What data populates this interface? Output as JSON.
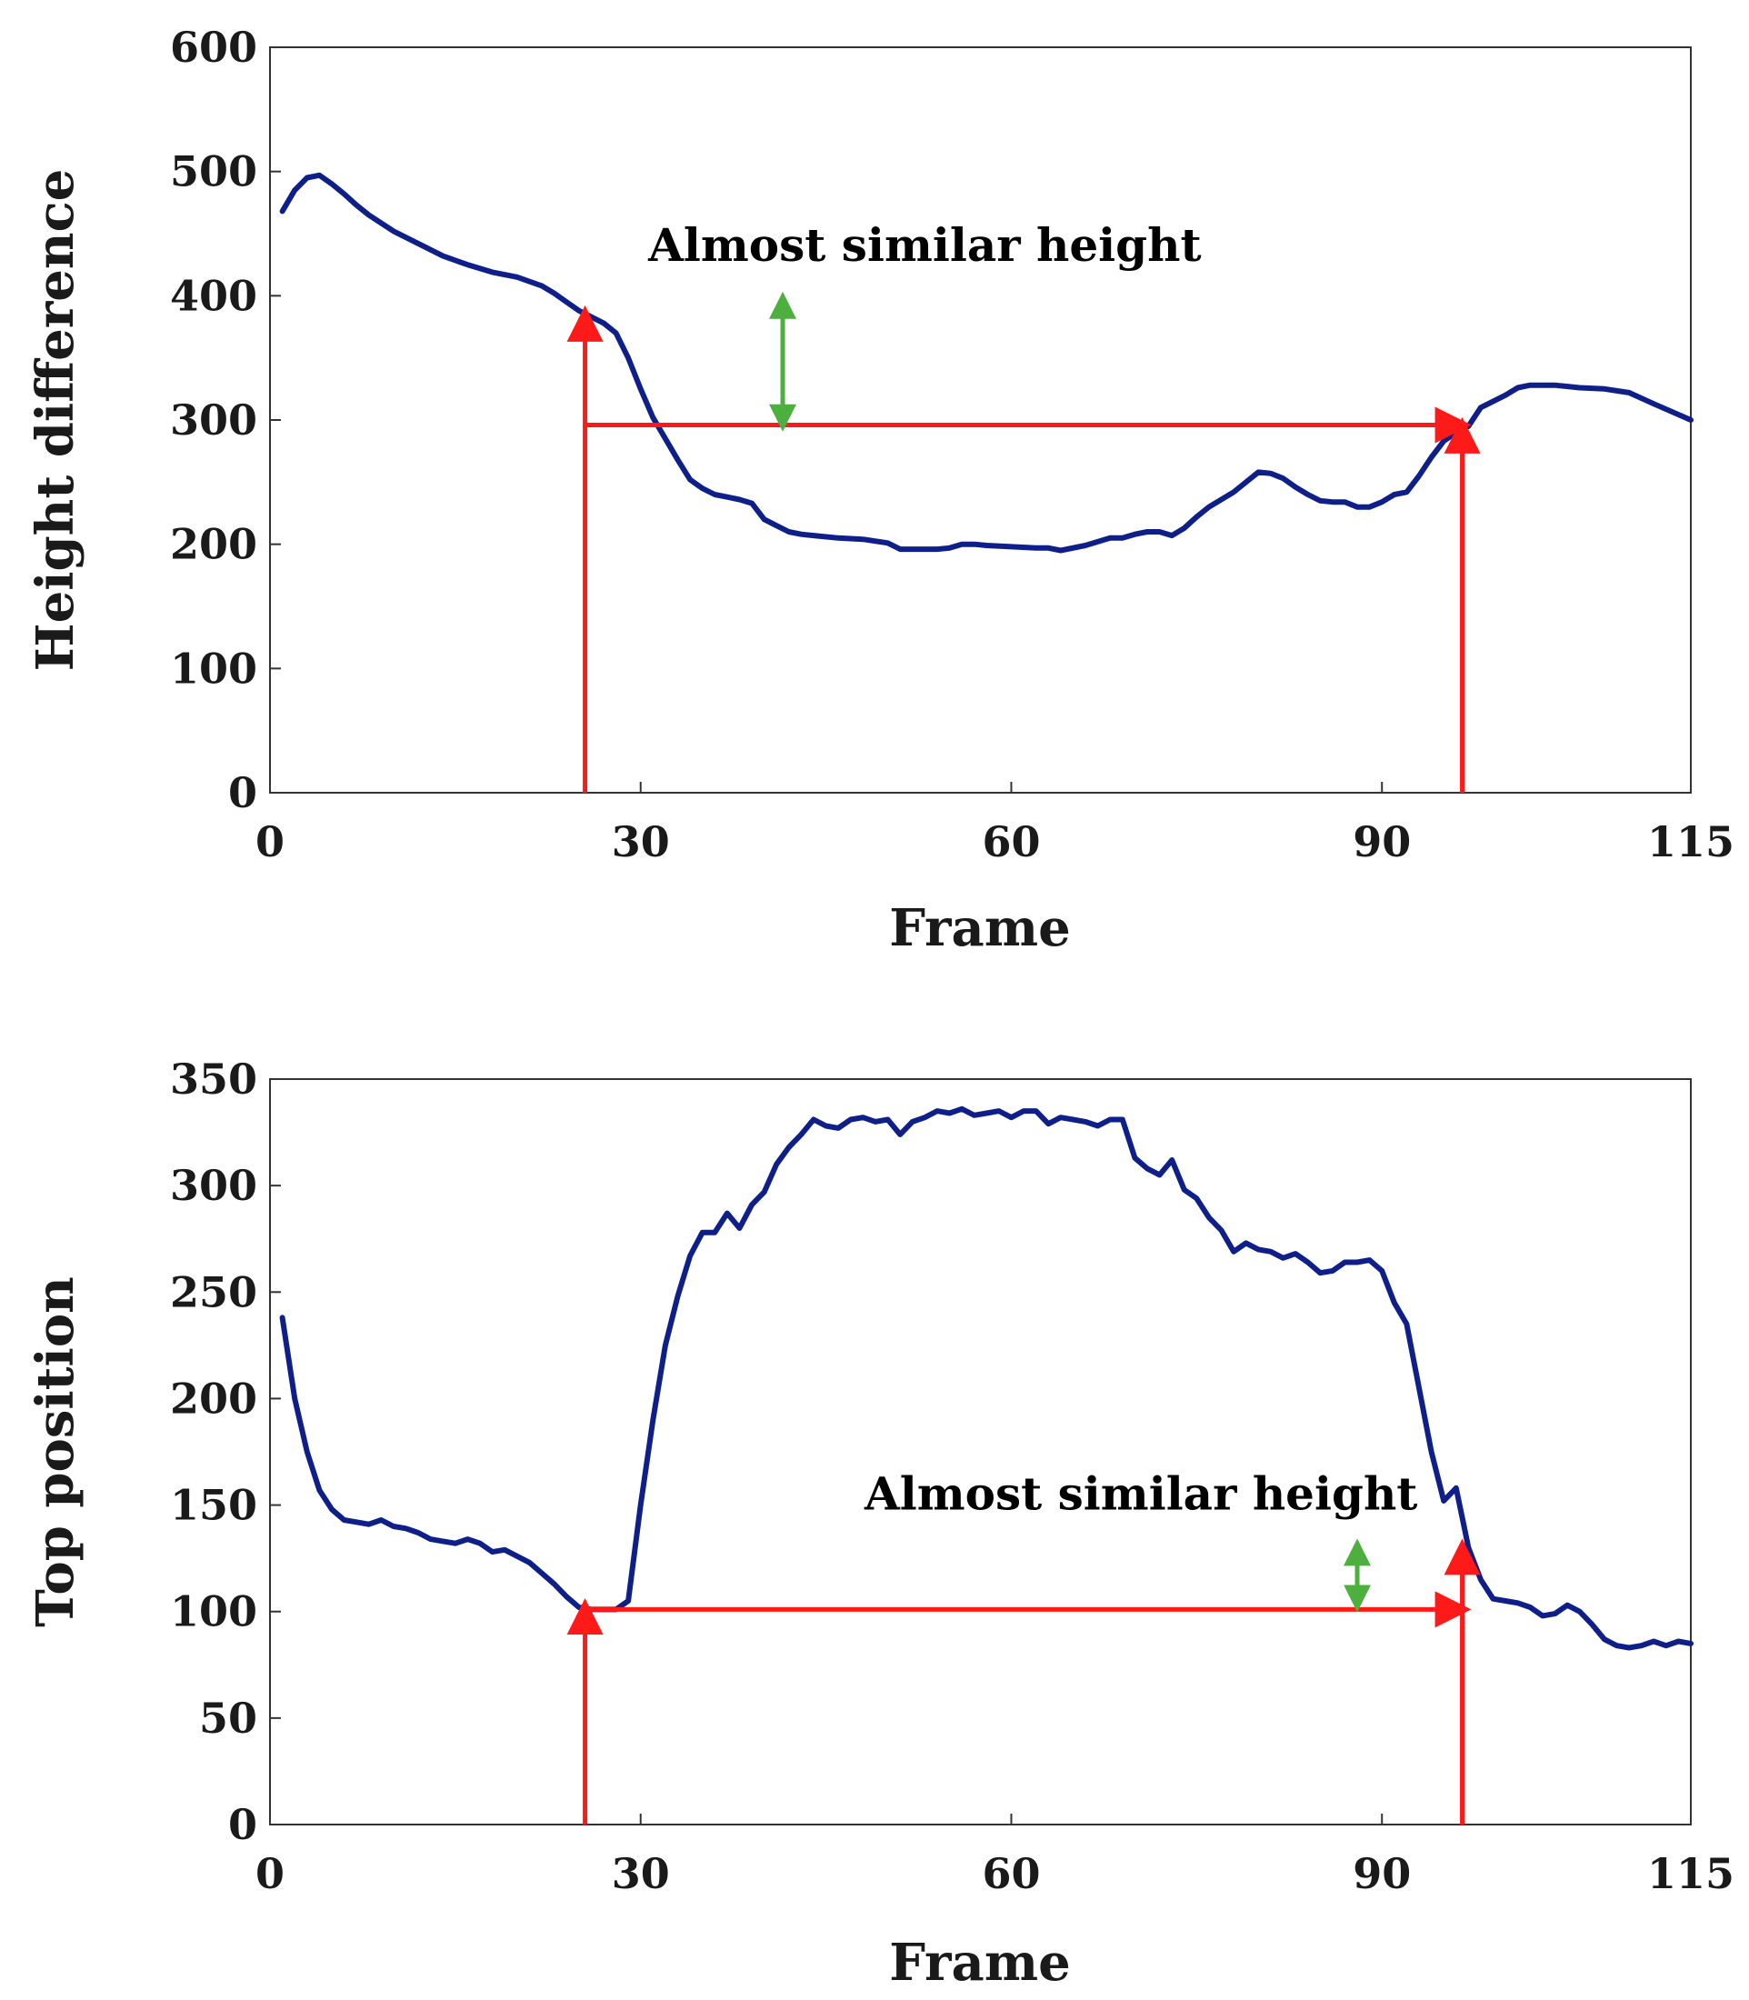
{
  "colors": {
    "series": "#0f1f8a",
    "arrow": "#ff1a1a",
    "double_arrow": "#4daf3e",
    "axis": "#333333",
    "tick_text": "#1a1a1a"
  },
  "chart_data": [
    {
      "type": "line",
      "title": "",
      "xlabel": "Frame",
      "ylabel": "Height difference",
      "xlim": [
        0,
        115
      ],
      "ylim": [
        0,
        600
      ],
      "xticks": [
        0,
        30,
        60,
        90,
        115
      ],
      "xtick_labels": [
        "0",
        "30",
        "60",
        "90",
        "115"
      ],
      "yticks": [
        0,
        100,
        200,
        300,
        400,
        500,
        600
      ],
      "ytick_labels": [
        "0",
        "100",
        "200",
        "300",
        "400",
        "500",
        "600"
      ],
      "grid": false,
      "series": [
        {
          "name": "Height difference",
          "x": [
            1,
            2,
            3,
            4,
            5,
            6,
            7,
            8,
            10,
            12,
            14,
            16,
            18,
            20,
            22,
            23,
            24,
            25,
            26,
            27,
            28,
            29,
            30,
            31,
            32,
            33,
            34,
            35,
            36,
            37,
            38,
            39,
            40,
            41,
            42,
            43,
            44,
            46,
            48,
            50,
            51,
            52,
            53,
            54,
            55,
            56,
            57,
            58,
            60,
            62,
            63,
            64,
            66,
            67,
            68,
            69,
            70,
            71,
            72,
            73,
            74,
            75,
            76,
            78,
            79,
            80,
            81,
            82,
            83,
            84,
            85,
            86,
            87,
            88,
            89,
            90,
            91,
            92,
            93,
            94,
            95,
            96,
            97,
            98,
            100,
            101,
            102,
            104,
            106,
            108,
            110,
            112,
            115
          ],
          "values": [
            468,
            485,
            495,
            497,
            490,
            482,
            473,
            465,
            452,
            442,
            432,
            425,
            419,
            415,
            408,
            402,
            395,
            388,
            383,
            378,
            370,
            350,
            325,
            302,
            285,
            268,
            252,
            245,
            240,
            238,
            236,
            233,
            220,
            215,
            210,
            208,
            207,
            205,
            204,
            201,
            196,
            196,
            196,
            196,
            197,
            200,
            200,
            199,
            198,
            197,
            197,
            195,
            199,
            202,
            205,
            205,
            208,
            210,
            210,
            207,
            213,
            222,
            230,
            242,
            250,
            258,
            257,
            253,
            246,
            240,
            235,
            234,
            234,
            230,
            230,
            234,
            240,
            242,
            255,
            270,
            283,
            290,
            295,
            310,
            320,
            326,
            328,
            328,
            326,
            325,
            322,
            313,
            300
          ]
        }
      ],
      "annotations": [
        {
          "type": "arrow",
          "from": [
            25.5,
            0
          ],
          "to": [
            25.5,
            385
          ]
        },
        {
          "type": "arrow",
          "from": [
            25.5,
            296
          ],
          "to": [
            96.5,
            296
          ]
        },
        {
          "type": "arrow",
          "from": [
            96.5,
            0
          ],
          "to": [
            96.5,
            295
          ]
        },
        {
          "type": "double-arrow",
          "x": 41.5,
          "y1": 298,
          "y2": 396
        },
        {
          "type": "text",
          "text": "Almost similar height",
          "x": 53,
          "y": 428
        }
      ]
    },
    {
      "type": "line",
      "title": "",
      "xlabel": "Frame",
      "ylabel": "Top position",
      "xlim": [
        0,
        115
      ],
      "ylim": [
        0,
        350
      ],
      "xticks": [
        0,
        30,
        60,
        90,
        115
      ],
      "xtick_labels": [
        "0",
        "30",
        "60",
        "90",
        "115"
      ],
      "yticks": [
        0,
        50,
        100,
        150,
        200,
        250,
        300,
        350
      ],
      "ytick_labels": [
        "0",
        "50",
        "100",
        "150",
        "200",
        "250",
        "300",
        "350"
      ],
      "grid": false,
      "series": [
        {
          "name": "Top position",
          "x": [
            1,
            2,
            3,
            4,
            5,
            6,
            7,
            8,
            9,
            10,
            11,
            12,
            13,
            14,
            15,
            16,
            17,
            18,
            19,
            20,
            21,
            22,
            23,
            24,
            25,
            26,
            27,
            28,
            29,
            30,
            31,
            32,
            33,
            34,
            35,
            36,
            37,
            38,
            39,
            40,
            41,
            42,
            43,
            44,
            45,
            46,
            47,
            48,
            49,
            50,
            51,
            52,
            53,
            54,
            55,
            56,
            57,
            58,
            59,
            60,
            61,
            62,
            63,
            64,
            65,
            66,
            67,
            68,
            69,
            70,
            71,
            72,
            73,
            74,
            75,
            76,
            77,
            78,
            79,
            80,
            81,
            82,
            83,
            84,
            85,
            86,
            87,
            88,
            89,
            90,
            91,
            92,
            93,
            94,
            95,
            96,
            97,
            98,
            99,
            100,
            101,
            102,
            103,
            104,
            105,
            106,
            107,
            108,
            109,
            110,
            111,
            112,
            113,
            114,
            115
          ],
          "values": [
            238,
            200,
            175,
            157,
            148,
            143,
            142,
            141,
            143,
            140,
            139,
            137,
            134,
            133,
            132,
            134,
            132,
            128,
            129,
            126,
            123,
            118,
            113,
            107,
            102,
            101,
            101,
            101,
            105,
            150,
            190,
            225,
            248,
            267,
            278,
            278,
            287,
            280,
            291,
            297,
            310,
            318,
            324,
            331,
            328,
            327,
            331,
            332,
            330,
            331,
            324,
            330,
            332,
            335,
            334,
            336,
            333,
            334,
            335,
            332,
            335,
            335,
            329,
            332,
            331,
            330,
            328,
            331,
            331,
            313,
            308,
            305,
            312,
            298,
            294,
            285,
            279,
            269,
            273,
            270,
            269,
            266,
            268,
            264,
            259,
            260,
            264,
            264,
            265,
            260,
            245,
            235,
            205,
            175,
            152,
            158,
            130,
            115,
            106,
            105,
            104,
            102,
            98,
            99,
            103,
            100,
            94,
            87,
            84,
            83,
            84,
            86,
            84,
            86,
            85
          ]
        }
      ],
      "annotations": [
        {
          "type": "arrow",
          "from": [
            25.5,
            0
          ],
          "to": [
            25.5,
            102
          ]
        },
        {
          "type": "arrow",
          "from": [
            25.5,
            101
          ],
          "to": [
            96.5,
            101
          ]
        },
        {
          "type": "arrow",
          "from": [
            96.5,
            0
          ],
          "to": [
            96.5,
            130
          ]
        },
        {
          "type": "double-arrow",
          "x": 88,
          "y1": 104,
          "y2": 130
        },
        {
          "type": "text",
          "text": "Almost similar height",
          "x": 70.5,
          "y": 148
        }
      ]
    }
  ]
}
